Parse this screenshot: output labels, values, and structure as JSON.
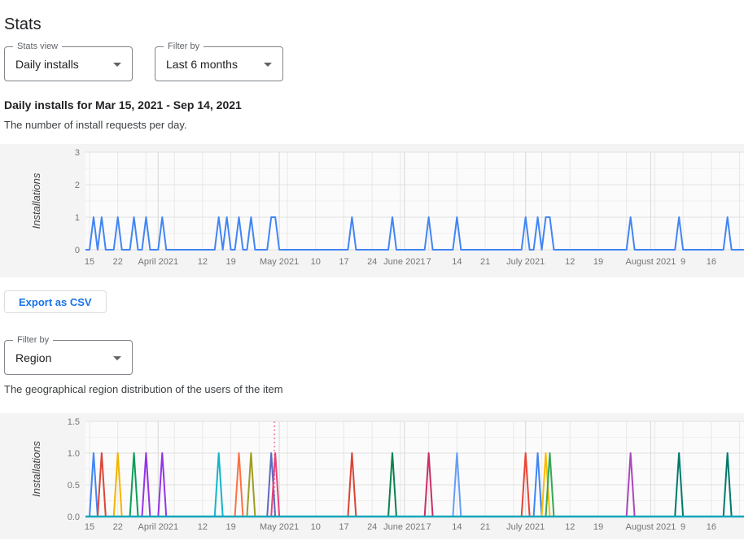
{
  "page": {
    "title": "Stats"
  },
  "controls": {
    "stats_view": {
      "label": "Stats view",
      "value": "Daily installs"
    },
    "filter_period": {
      "label": "Filter by",
      "value": "Last 6 months"
    },
    "filter_region": {
      "label": "Filter by",
      "value": "Region"
    }
  },
  "sections": {
    "daily_installs": {
      "heading": "Daily installs for Mar 15, 2021 - Sep 14, 2021",
      "description": "The number of install requests per day.",
      "export_button": "Export as CSV"
    },
    "region": {
      "description": "The geographical region distribution of the users of the item"
    }
  },
  "chart_data": [
    {
      "id": "daily-installs-chart",
      "type": "line",
      "title": "Daily installs",
      "ylabel": "Installations",
      "ylim": [
        0,
        3
      ],
      "y_ticks": [
        {
          "v": 0,
          "label": "0"
        },
        {
          "v": 1,
          "label": "1"
        },
        {
          "v": 2,
          "label": "2"
        },
        {
          "v": 3,
          "label": "3"
        }
      ],
      "y_major_step": 1,
      "y_minor_step": 0.5,
      "x_start_date": "Mar 15, 2021",
      "x_range_days": [
        0,
        163
      ],
      "x_ticks": [
        {
          "day": 0,
          "label": "15"
        },
        {
          "day": 7,
          "label": "22"
        },
        {
          "day": 17,
          "label": "April 2021"
        },
        {
          "day": 28,
          "label": "12"
        },
        {
          "day": 35,
          "label": "19"
        },
        {
          "day": 47,
          "label": "May 2021"
        },
        {
          "day": 56,
          "label": "10"
        },
        {
          "day": 63,
          "label": "17"
        },
        {
          "day": 70,
          "label": "24"
        },
        {
          "day": 78,
          "label": "June 2021"
        },
        {
          "day": 84,
          "label": "7"
        },
        {
          "day": 91,
          "label": "14"
        },
        {
          "day": 98,
          "label": "21"
        },
        {
          "day": 108,
          "label": "July 2021"
        },
        {
          "day": 119,
          "label": "12"
        },
        {
          "day": 126,
          "label": "19"
        },
        {
          "day": 139,
          "label": "August 2021"
        },
        {
          "day": 147,
          "label": "9"
        },
        {
          "day": 154,
          "label": "16"
        }
      ],
      "month_start_days": [
        17,
        47,
        78,
        108,
        139
      ],
      "series": [
        {
          "name": "Installations",
          "color": "#4285f4",
          "base_value": 0,
          "spike_value": 1,
          "spike_days": [
            1,
            3,
            7,
            11,
            14,
            18,
            32,
            34,
            37,
            40,
            45,
            46,
            65,
            75,
            84,
            91,
            108,
            111,
            113,
            114,
            134,
            146,
            158
          ]
        }
      ]
    },
    {
      "id": "region-chart",
      "type": "line",
      "title": "Region distribution",
      "ylabel": "Installations",
      "ylim": [
        0,
        1.5
      ],
      "y_ticks": [
        {
          "v": 0,
          "label": "0.0"
        },
        {
          "v": 0.5,
          "label": "0.5"
        },
        {
          "v": 1,
          "label": "1.0"
        },
        {
          "v": 1.5,
          "label": "1.5"
        }
      ],
      "y_major_step": 0.5,
      "y_minor_step": 0.25,
      "x_start_date": "Mar 15, 2021",
      "x_range_days": [
        0,
        163
      ],
      "x_ticks": [
        {
          "day": 0,
          "label": "15"
        },
        {
          "day": 7,
          "label": "22"
        },
        {
          "day": 17,
          "label": "April 2021"
        },
        {
          "day": 28,
          "label": "12"
        },
        {
          "day": 35,
          "label": "19"
        },
        {
          "day": 47,
          "label": "May 2021"
        },
        {
          "day": 56,
          "label": "10"
        },
        {
          "day": 63,
          "label": "17"
        },
        {
          "day": 70,
          "label": "24"
        },
        {
          "day": 78,
          "label": "June 2021"
        },
        {
          "day": 84,
          "label": "7"
        },
        {
          "day": 91,
          "label": "14"
        },
        {
          "day": 98,
          "label": "21"
        },
        {
          "day": 108,
          "label": "July 2021"
        },
        {
          "day": 119,
          "label": "12"
        },
        {
          "day": 126,
          "label": "19"
        },
        {
          "day": 139,
          "label": "August 2021"
        },
        {
          "day": 147,
          "label": "9"
        },
        {
          "day": 154,
          "label": "16"
        }
      ],
      "month_start_days": [
        17,
        47,
        78,
        108,
        139
      ],
      "baseline": {
        "value": 0,
        "color": "#0da6ba"
      },
      "marker_line": {
        "day": 45.8,
        "color": "#f490b2"
      },
      "spikes": [
        {
          "day": 1,
          "color": "#4285f4"
        },
        {
          "day": 3,
          "color": "#db4437"
        },
        {
          "day": 7,
          "color": "#f4b400"
        },
        {
          "day": 11,
          "color": "#0f9d58"
        },
        {
          "day": 14,
          "color": "#9334e6"
        },
        {
          "day": 18,
          "color": "#9334e6"
        },
        {
          "day": 32,
          "color": "#12b5cb"
        },
        {
          "day": 37,
          "color": "#ff7043"
        },
        {
          "day": 40,
          "color": "#9e9d24"
        },
        {
          "day": 45,
          "color": "#5c6bc0"
        },
        {
          "day": 46,
          "color": "#e9437a"
        },
        {
          "day": 65,
          "color": "#db4437"
        },
        {
          "day": 75,
          "color": "#0d8050"
        },
        {
          "day": 84,
          "color": "#cb2e68"
        },
        {
          "day": 91,
          "color": "#669df6"
        },
        {
          "day": 108,
          "color": "#ea4335"
        },
        {
          "day": 111,
          "color": "#4285f4"
        },
        {
          "day": 113,
          "color": "#fbbc04"
        },
        {
          "day": 114,
          "color": "#34a853"
        },
        {
          "day": 134,
          "color": "#ab47bc"
        },
        {
          "day": 146,
          "color": "#00796b"
        },
        {
          "day": 158,
          "color": "#00796b"
        }
      ]
    }
  ]
}
